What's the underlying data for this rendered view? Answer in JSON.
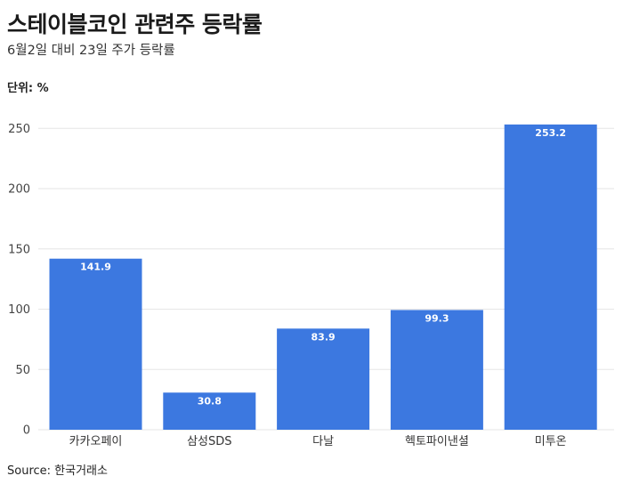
{
  "title": "스테이블코인 관련주 등락률",
  "subtitle": "6월2일 대비 23일 주가 등락률",
  "unit_label": "단위: %",
  "source": "Source: 한국거래소",
  "colors": {
    "bar": "#3c78e0",
    "grid": "#e6e6e6"
  },
  "chart_data": {
    "type": "bar",
    "categories": [
      "카카오페이",
      "삼성SDS",
      "다날",
      "헥토파이낸셜",
      "미투온"
    ],
    "values": [
      141.9,
      30.8,
      83.9,
      99.3,
      253.2
    ],
    "value_labels": [
      "141.9",
      "30.8",
      "83.9",
      "99.3",
      "253.2"
    ],
    "yticks": [
      0,
      50,
      100,
      150,
      200,
      250
    ],
    "ylim": [
      0,
      262
    ],
    "grid": true
  }
}
